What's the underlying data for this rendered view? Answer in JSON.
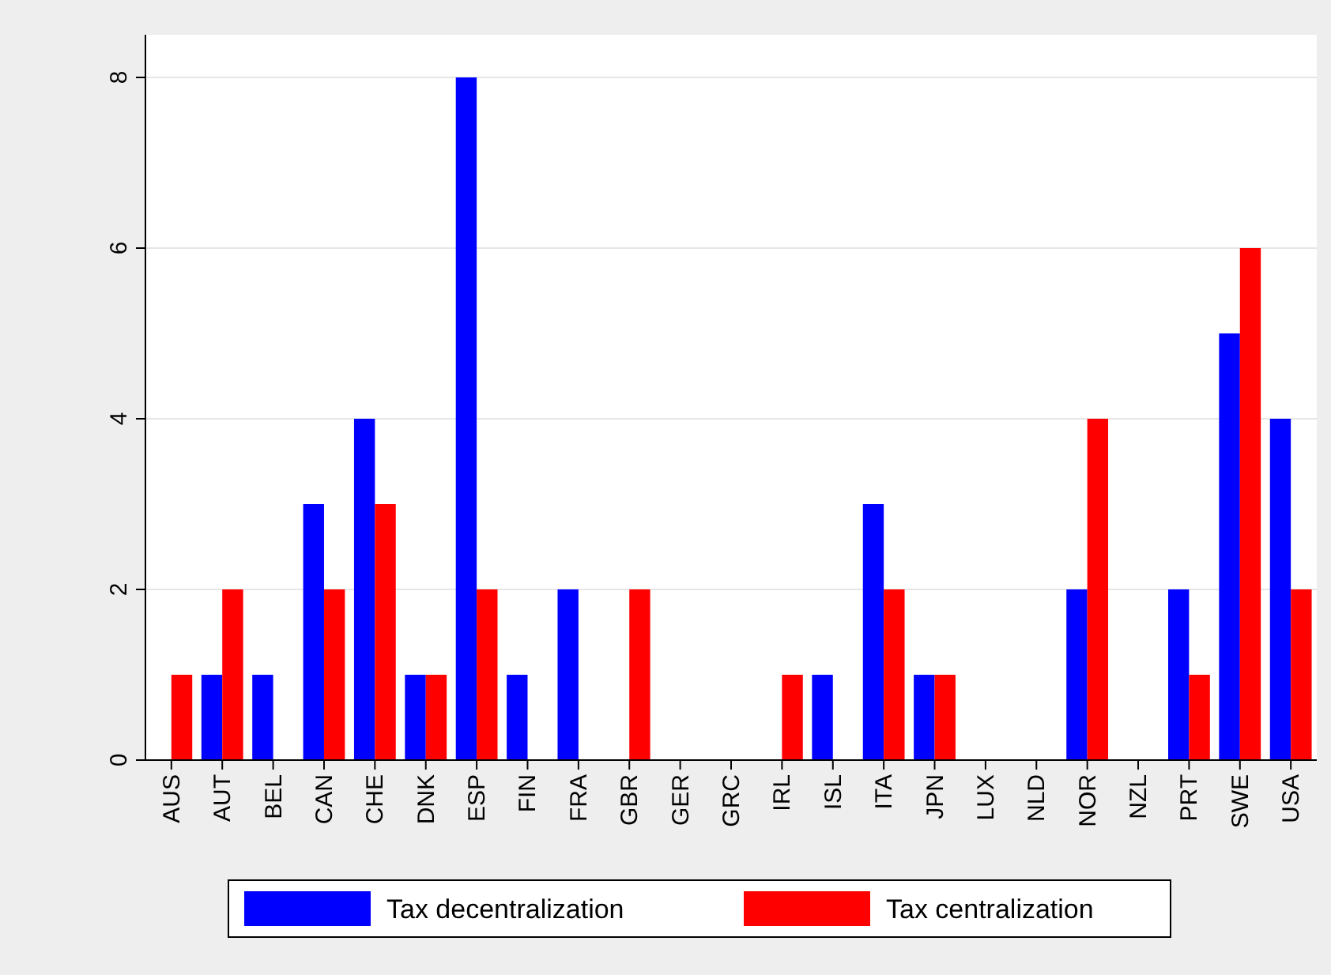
{
  "chart_data": {
    "type": "bar",
    "categories": [
      "AUS",
      "AUT",
      "BEL",
      "CAN",
      "CHE",
      "DNK",
      "ESP",
      "FIN",
      "FRA",
      "GBR",
      "GER",
      "GRC",
      "IRL",
      "ISL",
      "ITA",
      "JPN",
      "LUX",
      "NLD",
      "NOR",
      "NZL",
      "PRT",
      "SWE",
      "USA"
    ],
    "series": [
      {
        "name": "Tax decentralization",
        "color": "#0000ff",
        "values": [
          0,
          1,
          1,
          3,
          4,
          1,
          8,
          1,
          2,
          0,
          0,
          0,
          0,
          1,
          3,
          1,
          0,
          0,
          2,
          0,
          2,
          5,
          4
        ]
      },
      {
        "name": "Tax centralization",
        "color": "#ff0000",
        "values": [
          1,
          2,
          0,
          2,
          3,
          1,
          2,
          0,
          0,
          2,
          0,
          0,
          1,
          0,
          2,
          1,
          0,
          0,
          4,
          0,
          1,
          6,
          2
        ]
      }
    ],
    "ylim": [
      0,
      8.5
    ],
    "yticks": [
      0,
      2,
      4,
      6,
      8
    ],
    "grid": "y",
    "legend": "bottom"
  }
}
